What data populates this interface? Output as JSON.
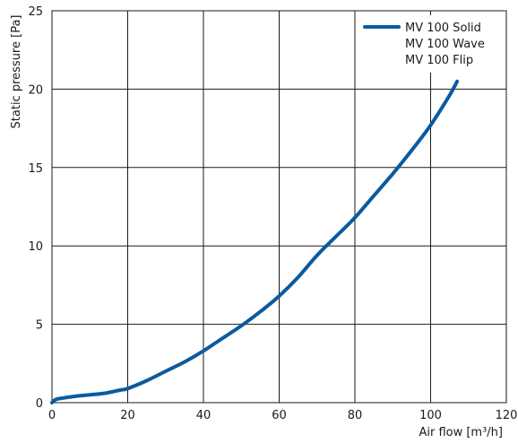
{
  "chart_data": {
    "type": "line",
    "xlabel": "Air flow [m³/h]",
    "ylabel": "Static pressure [Pa]",
    "xlim": [
      0,
      120
    ],
    "ylim": [
      0,
      25
    ],
    "xticks": [
      0,
      20,
      40,
      60,
      80,
      100,
      120
    ],
    "yticks": [
      0,
      5,
      10,
      15,
      20,
      25
    ],
    "grid": true,
    "legend_position": "top-right",
    "legend": [
      "MV 100 Solid",
      "MV 100 Wave",
      "MV 100 Flip"
    ],
    "line_color": "#0b5aa0",
    "series": [
      {
        "name": "MV 100 Solid",
        "x": [
          0,
          1,
          3,
          6,
          10,
          14,
          18,
          20,
          25,
          30,
          35,
          40,
          45,
          50,
          55,
          60,
          65,
          70,
          75,
          80,
          85,
          90,
          95,
          100,
          105,
          107
        ],
        "y": [
          0,
          0.2,
          0.3,
          0.4,
          0.5,
          0.6,
          0.8,
          0.9,
          1.4,
          2.0,
          2.6,
          3.3,
          4.1,
          4.9,
          5.8,
          6.8,
          8.0,
          9.4,
          10.6,
          11.8,
          13.2,
          14.6,
          16.1,
          17.7,
          19.6,
          20.5
        ]
      }
    ]
  }
}
